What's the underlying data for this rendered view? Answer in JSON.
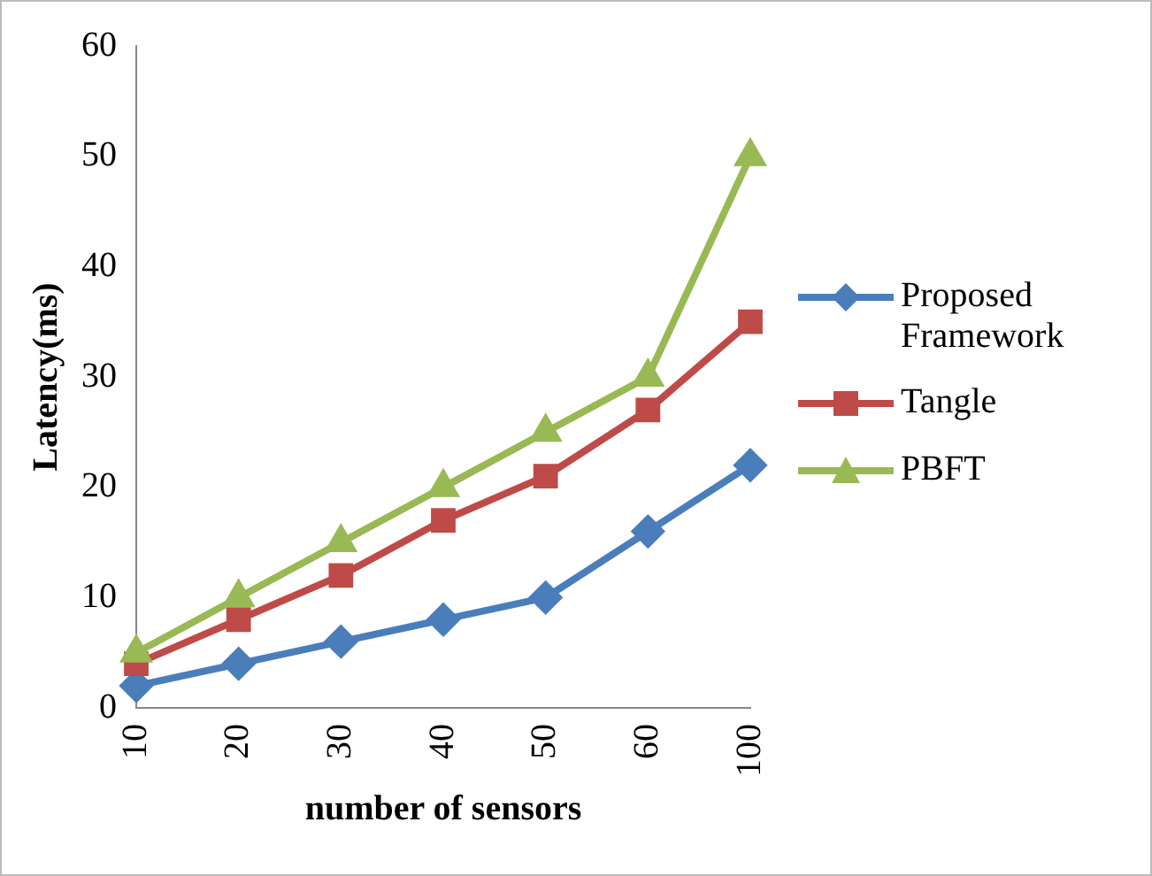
{
  "chart_data": {
    "type": "line",
    "xlabel": "number of sensors",
    "ylabel": "Latency(ms)",
    "categories": [
      "10",
      "20",
      "30",
      "40",
      "50",
      "60",
      "100"
    ],
    "series": [
      {
        "name": "Proposed Framework",
        "color": "#4a7ebb",
        "marker": "diamond",
        "values": [
          2,
          4,
          6,
          8,
          10,
          16,
          22
        ]
      },
      {
        "name": "Tangle",
        "color": "#be4b48",
        "marker": "square",
        "values": [
          4,
          8,
          12,
          17,
          21,
          27,
          35
        ]
      },
      {
        "name": "PBFT",
        "color": "#98b954",
        "marker": "triangle",
        "values": [
          5,
          10,
          15,
          20,
          25,
          30,
          50
        ]
      }
    ],
    "ylim": [
      0,
      60
    ],
    "yticks": [
      0,
      10,
      20,
      30,
      40,
      50,
      60
    ],
    "grid": false,
    "legend": "right"
  }
}
